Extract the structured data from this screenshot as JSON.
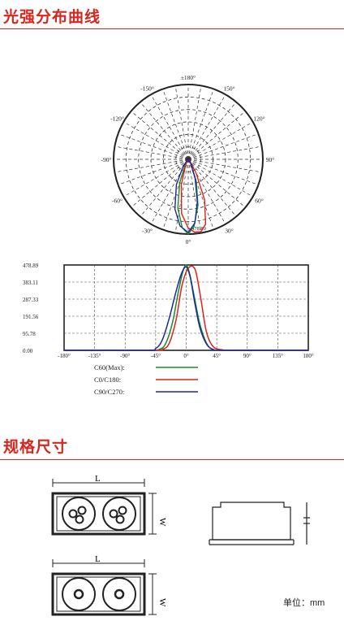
{
  "section1": {
    "title": "光强分布曲线"
  },
  "section2": {
    "title": "规格尺寸"
  },
  "polar": {
    "angle_labels": [
      "±180°",
      "150°",
      "120°",
      "90°",
      "60°",
      "30°",
      "0°",
      "-30°",
      "-60°",
      "-90°",
      "-120°",
      "-150°"
    ],
    "max_label": "478.89"
  },
  "chart_data": {
    "type": "line",
    "x": [
      -180,
      -135,
      -90,
      -45,
      0,
      45,
      90,
      135,
      180
    ],
    "xticks": [
      "-180°",
      "-135°",
      "-90°",
      "-45°",
      "0°",
      "45°",
      "90°",
      "135°",
      "180°"
    ],
    "yticks": [
      "478.89",
      "383.11",
      "287.33",
      "191.56",
      "95.78",
      "0.00"
    ],
    "ylim": [
      0,
      478.89
    ],
    "xlim": [
      -180,
      180
    ],
    "grid": true,
    "series": [
      {
        "name": "C60(Max):",
        "color": "#1a8a2a",
        "points": [
          [
            -180,
            0
          ],
          [
            -60,
            0
          ],
          [
            -40,
            5
          ],
          [
            -30,
            40
          ],
          [
            -20,
            160
          ],
          [
            -12,
            320
          ],
          [
            -5,
            440
          ],
          [
            0,
            478.89
          ],
          [
            5,
            430
          ],
          [
            12,
            300
          ],
          [
            20,
            150
          ],
          [
            30,
            40
          ],
          [
            40,
            5
          ],
          [
            60,
            0
          ],
          [
            180,
            0
          ]
        ]
      },
      {
        "name": "C0/C180:",
        "color": "#e0201a",
        "points": [
          [
            -180,
            0
          ],
          [
            -50,
            0
          ],
          [
            -35,
            5
          ],
          [
            -25,
            40
          ],
          [
            -15,
            170
          ],
          [
            -7,
            350
          ],
          [
            0,
            440
          ],
          [
            5,
            468
          ],
          [
            10,
            470
          ],
          [
            15,
            430
          ],
          [
            22,
            280
          ],
          [
            30,
            100
          ],
          [
            40,
            20
          ],
          [
            55,
            2
          ],
          [
            70,
            0
          ],
          [
            180,
            0
          ]
        ]
      },
      {
        "name": "C90/C270:",
        "color": "#1a2a9a",
        "points": [
          [
            -180,
            0
          ],
          [
            -60,
            0
          ],
          [
            -45,
            10
          ],
          [
            -35,
            60
          ],
          [
            -25,
            180
          ],
          [
            -15,
            330
          ],
          [
            -7,
            430
          ],
          [
            0,
            468
          ],
          [
            6,
            410
          ],
          [
            12,
            280
          ],
          [
            20,
            130
          ],
          [
            30,
            35
          ],
          [
            40,
            4
          ],
          [
            55,
            0
          ],
          [
            180,
            0
          ]
        ]
      }
    ]
  },
  "dimensions": {
    "unit_label": "单位：mm",
    "length_label": "L",
    "width_label": "W",
    "height_label": "H"
  },
  "colors": {
    "accent": "#d7261e"
  }
}
